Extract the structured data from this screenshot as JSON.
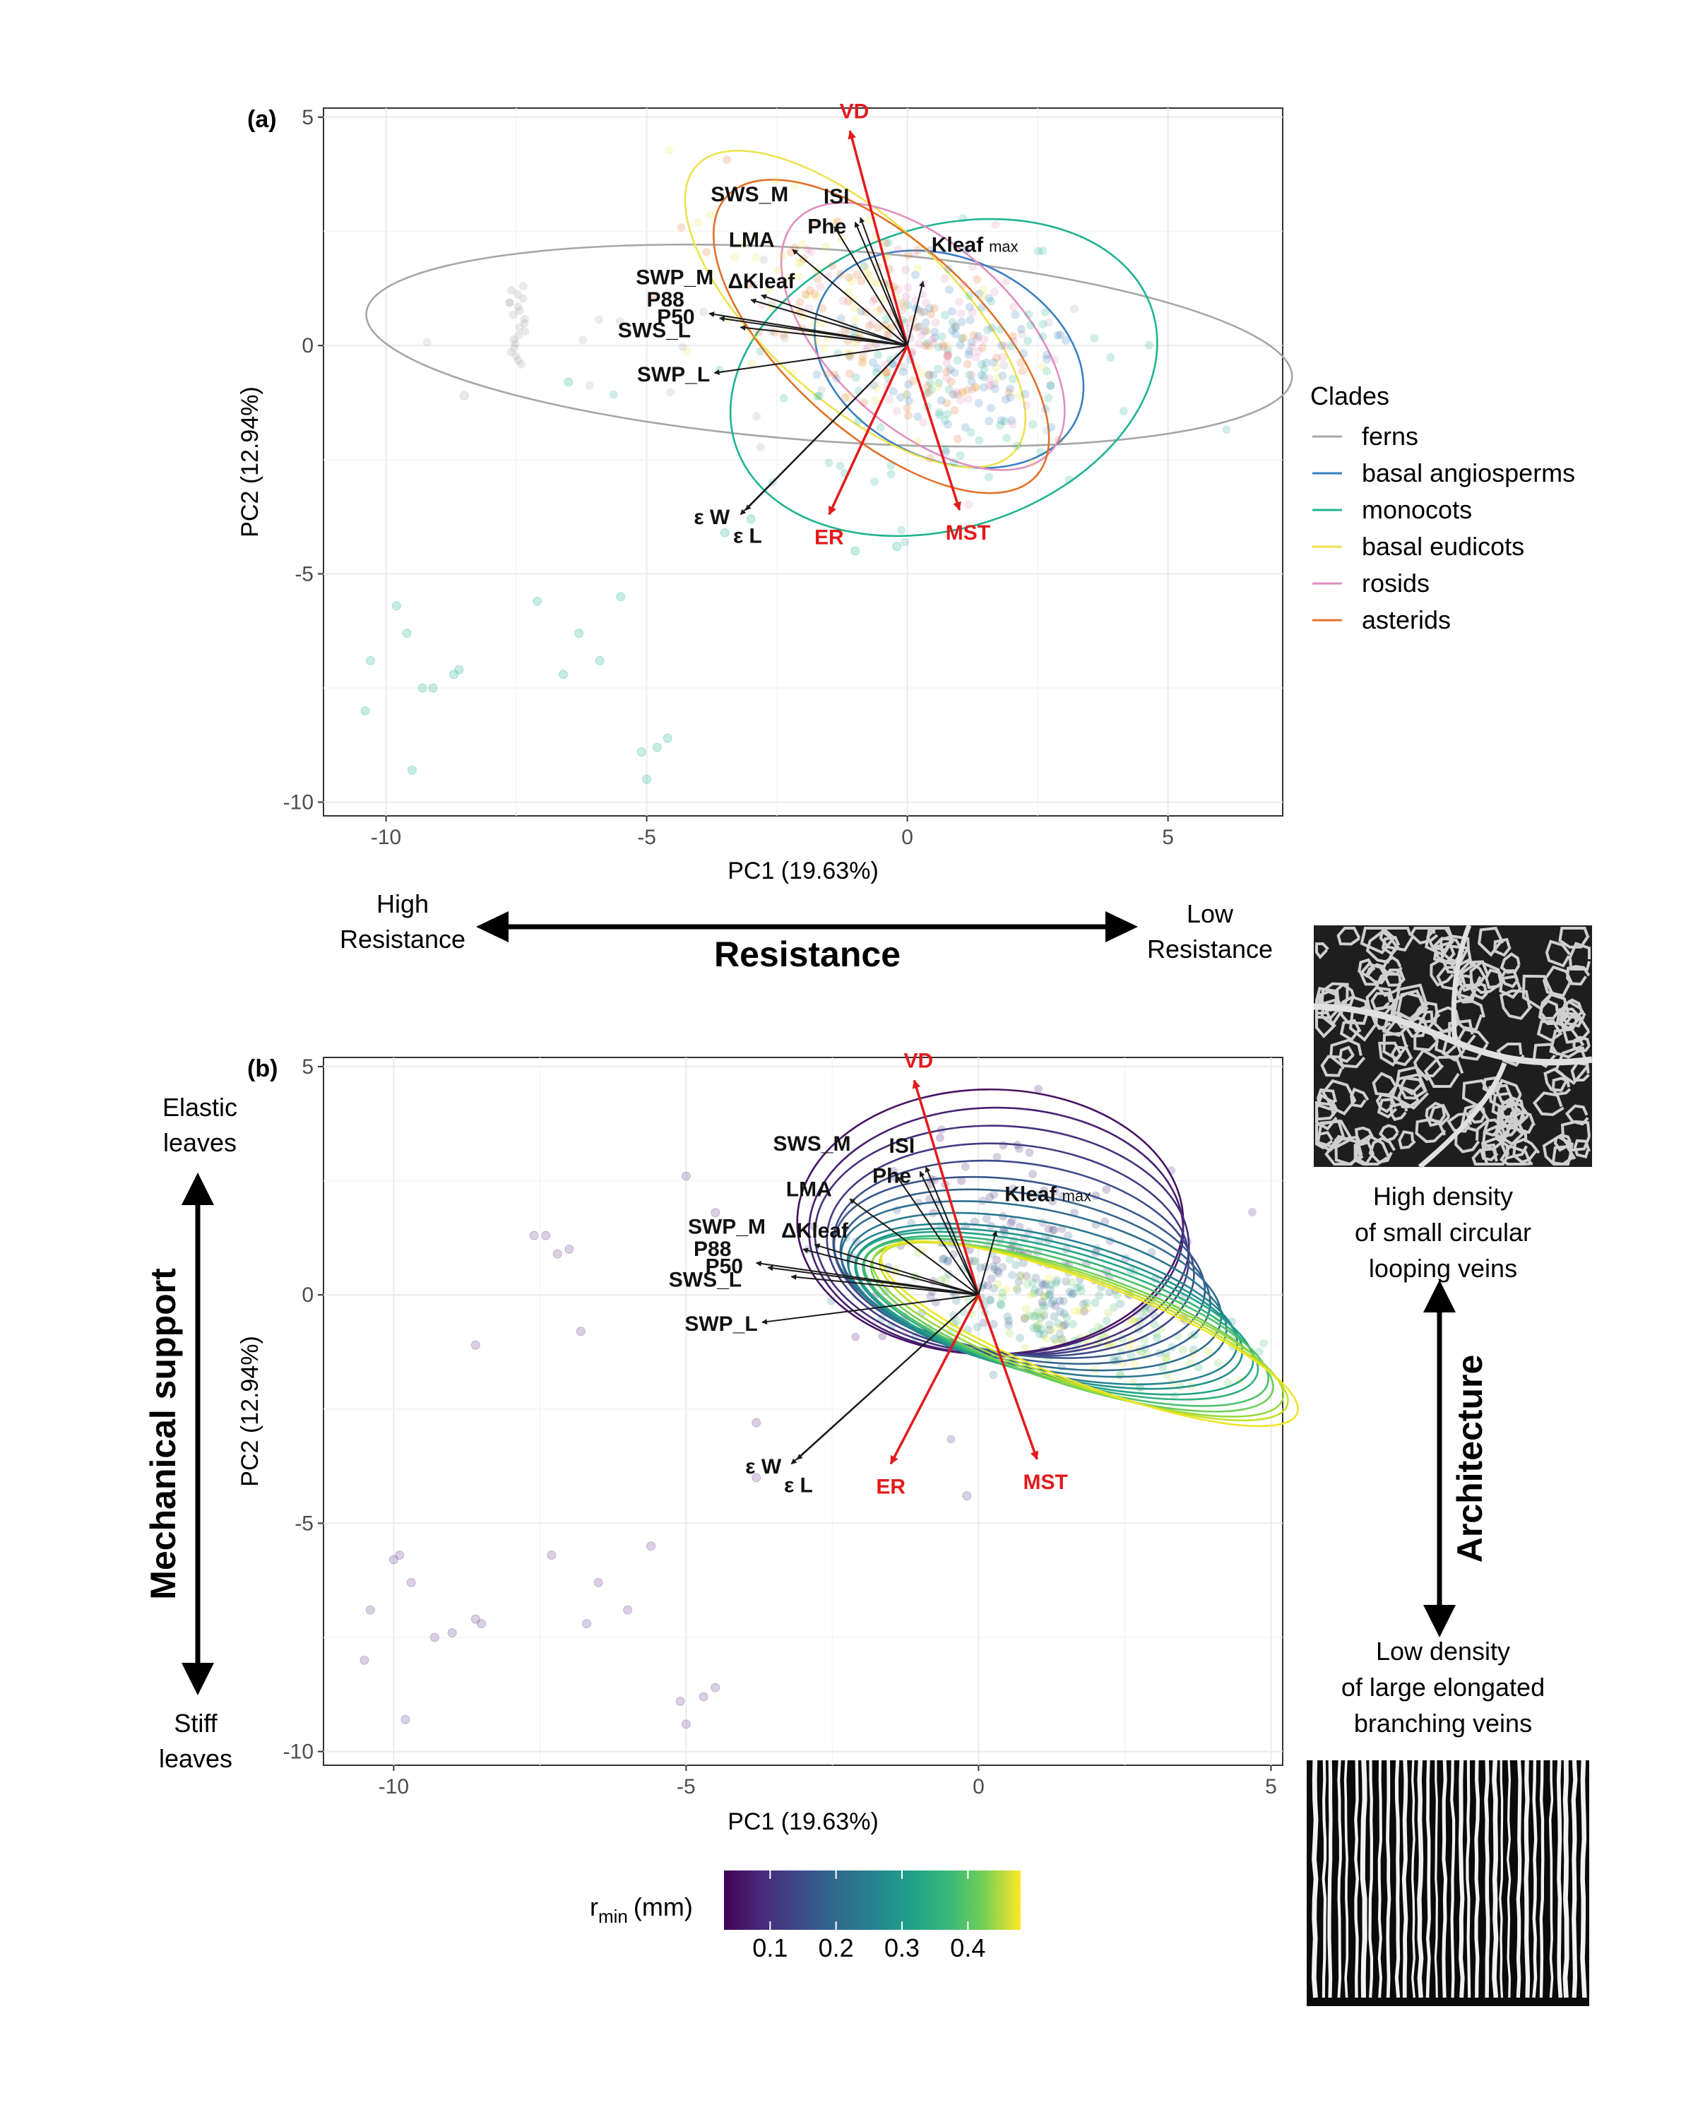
{
  "figure": {
    "bottom_panel_x": {
      "left": "High\nResistance",
      "right": "Low\nResistance",
      "title": "Resistance"
    },
    "left_side": {
      "title": "Mechanical support",
      "top": "Elastic\nleaves",
      "bottom": "Stiff\nleaves"
    },
    "right_side": {
      "title": "Architecture",
      "top": "High density\nof small circular\nlooping veins",
      "bottom": "Low density\nof large elongated\nbranching veins"
    },
    "colorbar": {
      "title": "r",
      "title_sub": "min",
      "title_unit": "(mm)",
      "ticks": [
        "0.1",
        "0.2",
        "0.3",
        "0.4"
      ]
    }
  },
  "chart_data": [
    {
      "panel": "(a)",
      "type": "scatter",
      "xlabel": "PC1 (19.63%)",
      "ylabel": "PC2 (12.94%)",
      "xlim": [
        -11.2,
        7.2
      ],
      "ylim": [
        -10.3,
        5.2
      ],
      "x_ticks": [
        -10,
        -5,
        0,
        5
      ],
      "y_ticks": [
        5,
        0,
        -5,
        -10
      ],
      "grid": true,
      "legend": {
        "title": "Clades",
        "placement": "right",
        "entries": [
          {
            "name": "ferns",
            "color": "#a6a6a6"
          },
          {
            "name": "basal angiosperms",
            "color": "#3a7fc1"
          },
          {
            "name": "monocots",
            "color": "#1fb390"
          },
          {
            "name": "basal eudicots",
            "color": "#ece24e"
          },
          {
            "name": "rosids",
            "color": "#e08ec0"
          },
          {
            "name": "asterids",
            "color": "#e1712a"
          }
        ]
      },
      "vectors": [
        {
          "label": "VD",
          "x": -1.1,
          "y": 4.7,
          "color": "#e31a1c"
        },
        {
          "label": "ISI",
          "x": -0.9,
          "y": 2.8,
          "color": "#1a1a1a"
        },
        {
          "label": "Phe",
          "x": -1.0,
          "y": 2.7,
          "color": "#1a1a1a"
        },
        {
          "label": "Kleaf max",
          "x": 0.3,
          "y": 1.4,
          "color": "#1a1a1a"
        },
        {
          "label": "SWS_M",
          "x": -1.4,
          "y": 2.6,
          "color": "#1a1a1a"
        },
        {
          "label": "LMA",
          "x": -2.2,
          "y": 2.1,
          "color": "#1a1a1a"
        },
        {
          "label": "ΔKleaf",
          "x": -2.8,
          "y": 1.1,
          "color": "#1a1a1a"
        },
        {
          "label": "SWP_M",
          "x": -3.0,
          "y": 1.0,
          "color": "#1a1a1a"
        },
        {
          "label": "P88",
          "x": -3.8,
          "y": 0.7,
          "color": "#1a1a1a"
        },
        {
          "label": "P50",
          "x": -3.6,
          "y": 0.6,
          "color": "#1a1a1a"
        },
        {
          "label": "SWS_L",
          "x": -3.2,
          "y": 0.4,
          "color": "#1a1a1a"
        },
        {
          "label": "SWP_L",
          "x": -3.7,
          "y": -0.6,
          "color": "#1a1a1a"
        },
        {
          "label": "ε W",
          "x": -3.1,
          "y": -3.6,
          "color": "#1a1a1a"
        },
        {
          "label": "ε L",
          "x": -3.2,
          "y": -3.7,
          "color": "#1a1a1a"
        },
        {
          "label": "ER",
          "x": -1.5,
          "y": -3.7,
          "color": "#e31a1c"
        },
        {
          "label": "MST",
          "x": 1.0,
          "y": -3.6,
          "color": "#e31a1c"
        }
      ],
      "ellipses": [
        {
          "group": "ferns",
          "cx": -1.5,
          "cy": 0.0,
          "rx": 8.9,
          "ry": 2.1,
          "angle": -4
        },
        {
          "group": "basal angiosperms",
          "cx": 0.8,
          "cy": -0.3,
          "rx": 2.7,
          "ry": 2.2,
          "angle": -25
        },
        {
          "group": "monocots",
          "cx": 0.7,
          "cy": -0.7,
          "rx": 4.2,
          "ry": 3.3,
          "angle": 18
        },
        {
          "group": "basal eudicots",
          "cx": -1.0,
          "cy": 0.8,
          "rx": 4.1,
          "ry": 2.0,
          "angle": -42
        },
        {
          "group": "rosids",
          "cx": 0.3,
          "cy": 0.2,
          "rx": 3.3,
          "ry": 2.0,
          "angle": -42
        },
        {
          "group": "asterids",
          "cx": -0.5,
          "cy": 0.2,
          "rx": 4.0,
          "ry": 2.1,
          "angle": -42
        }
      ],
      "outlier_points": [
        {
          "x": -10.3,
          "y": -6.9
        },
        {
          "x": -10.4,
          "y": -8.0
        },
        {
          "x": -9.8,
          "y": -5.7
        },
        {
          "x": -9.6,
          "y": -6.3
        },
        {
          "x": -9.3,
          "y": -7.5
        },
        {
          "x": -9.1,
          "y": -7.5
        },
        {
          "x": -8.7,
          "y": -7.2
        },
        {
          "x": -8.6,
          "y": -7.1
        },
        {
          "x": -9.5,
          "y": -9.3
        },
        {
          "x": -7.1,
          "y": -5.6
        },
        {
          "x": -6.6,
          "y": -7.2
        },
        {
          "x": -6.3,
          "y": -6.3
        },
        {
          "x": -5.9,
          "y": -6.9
        },
        {
          "x": -5.5,
          "y": -5.5
        },
        {
          "x": -5.1,
          "y": -8.9
        },
        {
          "x": -5.0,
          "y": -9.5
        },
        {
          "x": -4.8,
          "y": -8.8
        },
        {
          "x": -4.6,
          "y": -8.6
        },
        {
          "x": -8.5,
          "y": -1.1
        },
        {
          "x": -6.5,
          "y": -0.8
        },
        {
          "x": -1.0,
          "y": -4.5
        },
        {
          "x": -0.2,
          "y": -4.4
        },
        {
          "x": -3.0,
          "y": -3.8
        },
        {
          "x": -3.5,
          "y": -4.1
        }
      ]
    },
    {
      "panel": "(b)",
      "type": "scatter",
      "xlabel": "PC1 (19.63%)",
      "ylabel": "PC2 (12.94%)",
      "xlim": [
        -11.2,
        5.2
      ],
      "ylim": [
        -10.3,
        5.2
      ],
      "x_ticks": [
        -10,
        -5,
        0,
        5
      ],
      "y_ticks": [
        5,
        0,
        -5,
        -10
      ],
      "grid": true,
      "color_scale": {
        "name": "r min (mm)",
        "min": 0.03,
        "max": 0.48,
        "palette": "viridis"
      },
      "vectors": [
        {
          "label": "VD",
          "x": -1.1,
          "y": 4.7,
          "color": "#e31a1c"
        },
        {
          "label": "ISI",
          "x": -0.9,
          "y": 2.8,
          "color": "#1a1a1a"
        },
        {
          "label": "Phe",
          "x": -1.0,
          "y": 2.7,
          "color": "#1a1a1a"
        },
        {
          "label": "Kleaf max",
          "x": 0.3,
          "y": 1.4,
          "color": "#1a1a1a"
        },
        {
          "label": "SWS_M",
          "x": -1.4,
          "y": 2.6,
          "color": "#1a1a1a"
        },
        {
          "label": "LMA",
          "x": -2.2,
          "y": 2.1,
          "color": "#1a1a1a"
        },
        {
          "label": "ΔKleaf",
          "x": -2.8,
          "y": 1.1,
          "color": "#1a1a1a"
        },
        {
          "label": "SWP_M",
          "x": -3.0,
          "y": 1.0,
          "color": "#1a1a1a"
        },
        {
          "label": "P88",
          "x": -3.8,
          "y": 0.7,
          "color": "#1a1a1a"
        },
        {
          "label": "P50",
          "x": -3.6,
          "y": 0.6,
          "color": "#1a1a1a"
        },
        {
          "label": "SWS_L",
          "x": -3.2,
          "y": 0.4,
          "color": "#1a1a1a"
        },
        {
          "label": "SWP_L",
          "x": -3.7,
          "y": -0.6,
          "color": "#1a1a1a"
        },
        {
          "label": "ε W",
          "x": -3.1,
          "y": -3.6,
          "color": "#1a1a1a"
        },
        {
          "label": "ε L",
          "x": -3.2,
          "y": -3.7,
          "color": "#1a1a1a"
        },
        {
          "label": "ER",
          "x": -1.5,
          "y": -3.7,
          "color": "#e31a1c"
        },
        {
          "label": "MST",
          "x": 1.0,
          "y": -3.6,
          "color": "#e31a1c"
        }
      ],
      "ellipses": [
        {
          "cx": 0.2,
          "cy": 1.6,
          "rx": 3.3,
          "ry": 2.9,
          "angle": 0,
          "r": 0.05
        },
        {
          "cx": 0.3,
          "cy": 1.4,
          "rx": 3.2,
          "ry": 2.7,
          "angle": 0,
          "r": 0.07
        },
        {
          "cx": 0.4,
          "cy": 1.2,
          "rx": 3.2,
          "ry": 2.5,
          "angle": -3,
          "r": 0.09
        },
        {
          "cx": 0.5,
          "cy": 1.0,
          "rx": 3.1,
          "ry": 2.3,
          "angle": -5,
          "r": 0.11
        },
        {
          "cx": 0.6,
          "cy": 0.8,
          "rx": 3.1,
          "ry": 2.1,
          "angle": -7,
          "r": 0.13
        },
        {
          "cx": 0.7,
          "cy": 0.6,
          "rx": 3.2,
          "ry": 1.9,
          "angle": -9,
          "r": 0.15
        },
        {
          "cx": 0.8,
          "cy": 0.4,
          "rx": 3.2,
          "ry": 1.8,
          "angle": -10,
          "r": 0.17
        },
        {
          "cx": 0.9,
          "cy": 0.2,
          "rx": 3.3,
          "ry": 1.7,
          "angle": -11,
          "r": 0.19
        },
        {
          "cx": 1.0,
          "cy": 0.0,
          "rx": 3.3,
          "ry": 1.6,
          "angle": -12,
          "r": 0.21
        },
        {
          "cx": 1.1,
          "cy": -0.2,
          "rx": 3.4,
          "ry": 1.5,
          "angle": -13,
          "r": 0.23
        },
        {
          "cx": 1.2,
          "cy": -0.3,
          "rx": 3.4,
          "ry": 1.45,
          "angle": -14,
          "r": 0.26
        },
        {
          "cx": 1.3,
          "cy": -0.4,
          "rx": 3.5,
          "ry": 1.4,
          "angle": -15,
          "r": 0.29
        },
        {
          "cx": 1.4,
          "cy": -0.5,
          "rx": 3.5,
          "ry": 1.35,
          "angle": -16,
          "r": 0.32
        },
        {
          "cx": 1.5,
          "cy": -0.6,
          "rx": 3.6,
          "ry": 1.3,
          "angle": -17,
          "r": 0.35
        },
        {
          "cx": 1.6,
          "cy": -0.7,
          "rx": 3.6,
          "ry": 1.25,
          "angle": -18,
          "r": 0.38
        },
        {
          "cx": 1.7,
          "cy": -0.75,
          "rx": 3.7,
          "ry": 1.2,
          "angle": -19,
          "r": 0.41
        },
        {
          "cx": 1.8,
          "cy": -0.8,
          "rx": 3.7,
          "ry": 1.15,
          "angle": -20,
          "r": 0.44
        },
        {
          "cx": 1.9,
          "cy": -0.85,
          "rx": 3.8,
          "ry": 1.1,
          "angle": -21,
          "r": 0.47
        }
      ],
      "outlier_points": [
        {
          "x": -10.4,
          "y": -6.9
        },
        {
          "x": -10.5,
          "y": -8.0
        },
        {
          "x": -10.0,
          "y": -5.8
        },
        {
          "x": -9.9,
          "y": -5.7
        },
        {
          "x": -9.7,
          "y": -6.3
        },
        {
          "x": -9.3,
          "y": -7.5
        },
        {
          "x": -9.0,
          "y": -7.4
        },
        {
          "x": -8.6,
          "y": -7.1
        },
        {
          "x": -8.5,
          "y": -7.2
        },
        {
          "x": -9.8,
          "y": -9.3
        },
        {
          "x": -7.3,
          "y": -5.7
        },
        {
          "x": -6.7,
          "y": -7.2
        },
        {
          "x": -6.5,
          "y": -6.3
        },
        {
          "x": -6.0,
          "y": -6.9
        },
        {
          "x": -5.6,
          "y": -5.5
        },
        {
          "x": -5.1,
          "y": -8.9
        },
        {
          "x": -5.0,
          "y": -9.4
        },
        {
          "x": -4.7,
          "y": -8.8
        },
        {
          "x": -4.5,
          "y": -8.6
        },
        {
          "x": -8.6,
          "y": -1.1
        },
        {
          "x": -6.8,
          "y": -0.8
        },
        {
          "x": -3.8,
          "y": -2.8
        },
        {
          "x": -3.8,
          "y": -4.0
        },
        {
          "x": -0.2,
          "y": -4.4
        },
        {
          "x": -7.6,
          "y": 1.3
        },
        {
          "x": -7.4,
          "y": 1.3
        },
        {
          "x": -7.2,
          "y": 0.9
        },
        {
          "x": -7.0,
          "y": 1.0
        },
        {
          "x": -5.0,
          "y": 2.6
        },
        {
          "x": -4.5,
          "y": 1.8
        }
      ]
    }
  ]
}
